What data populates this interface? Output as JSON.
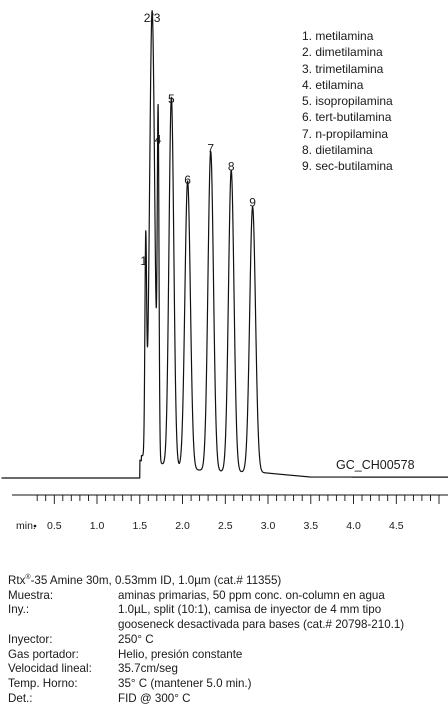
{
  "chart_data": {
    "type": "line",
    "xlabel": "min.",
    "xlim": [
      0.3,
      5.0
    ],
    "x_ticks": [
      0.5,
      1.0,
      1.5,
      2.0,
      2.5,
      3.0,
      3.5,
      4.0,
      4.5
    ],
    "x_tick_labels": [
      "0.5",
      "1.0",
      "1.5",
      "2.0",
      "2.5",
      "3.0",
      "3.5",
      "4.0",
      "4.5"
    ],
    "baseline_level": 0.01,
    "peaks": [
      {
        "label": "1",
        "x": 1.57,
        "height": 0.46,
        "width": 0.01
      },
      {
        "label": "2/3",
        "x": 1.645,
        "height": 1.0,
        "width": 0.03
      },
      {
        "label": "4",
        "x": 1.715,
        "height": 0.73,
        "width": 0.01
      },
      {
        "label": "5",
        "x": 1.87,
        "height": 0.82,
        "width": 0.028
      },
      {
        "label": "6",
        "x": 2.06,
        "height": 0.64,
        "width": 0.032
      },
      {
        "label": "7",
        "x": 2.33,
        "height": 0.71,
        "width": 0.032
      },
      {
        "label": "8",
        "x": 2.57,
        "height": 0.67,
        "width": 0.032
      },
      {
        "label": "9",
        "x": 2.82,
        "height": 0.59,
        "width": 0.034
      }
    ],
    "chromatogram_code": "GC_CH00578"
  },
  "legend": [
    "1. metilamina",
    "2. dimetilamina",
    "3. trimetilamina",
    "4. etilamina",
    "5. isopropilamina",
    "6. tert-butilamina",
    "7. n-propilamina",
    "8. dietilamina",
    "9. sec-butilamina"
  ],
  "conditions": {
    "column_prefix": "Rtx",
    "column_reg": "®",
    "column_rest": "-35 Amine 30m, 0.53mm ID, 1.0µm (cat.# 11355)",
    "rows": [
      {
        "key": "Muestra:",
        "value": "aminas primarias, 50 ppm conc. on-column en agua"
      },
      {
        "key": "Iny.:",
        "value": "1.0µL, split (10:1), camisa de inyector de 4 mm tipo"
      },
      {
        "key": "",
        "value": "gooseneck desactivada para bases (cat.# 20798-210.1)"
      },
      {
        "key": "Inyector:",
        "value": "250° C"
      },
      {
        "key": "Gas portador:",
        "value": "Helio, presión constante"
      },
      {
        "key": "Velocidad lineal:",
        "value": "35.7cm/seg"
      },
      {
        "key": "Temp. Horno:",
        "value": "35° C (mantener 5.0 min.)"
      },
      {
        "key": "Det.:",
        "value": "FID @ 300° C"
      }
    ]
  }
}
